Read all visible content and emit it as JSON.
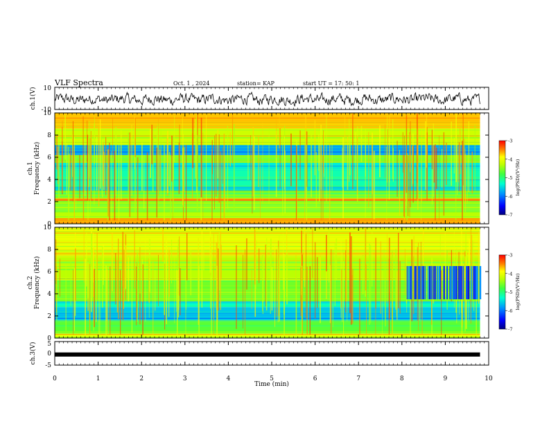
{
  "header": {
    "title": "VLF Spectra",
    "date": "Oct. 1 , 2024",
    "station": "station= KAP",
    "start": "start  UT =  17: 50: 1"
  },
  "colors": {
    "spectrogram_scale": [
      "#000080",
      "#0000ff",
      "#0080ff",
      "#00e0ff",
      "#00ff80",
      "#80ff00",
      "#ffff00",
      "#ff8000",
      "#ff0000"
    ]
  },
  "chart_data": [
    {
      "type": "line",
      "name": "ch1-waveform",
      "ylabel": "ch.1(V)",
      "ylim": [
        -10,
        10
      ],
      "yticks": [
        "10",
        "-10"
      ],
      "x_range": [
        0,
        9.8
      ],
      "description_values": {
        "mean": -1.0,
        "amplitude": 3.5
      }
    },
    {
      "type": "heatmap",
      "name": "ch1-spectrogram",
      "ylabel_line1": "ch.1",
      "ylabel_line2": "Frequency (kHz)",
      "ylim": [
        0,
        10
      ],
      "yticks": [
        "0",
        "2",
        "4",
        "6",
        "8",
        "10"
      ],
      "x_range": [
        0,
        9.8
      ],
      "colorbar": {
        "label": "log(PSD)(V²/Hz)",
        "ticks": [
          "-3",
          "-4",
          "-5",
          "-6",
          "-7"
        ],
        "range": [
          -7,
          -3
        ]
      },
      "bands": [
        {
          "from": 0.0,
          "to": 0.5,
          "level": -3.6
        },
        {
          "from": 0.5,
          "to": 1.0,
          "level": -4.3
        },
        {
          "from": 1.0,
          "to": 2.1,
          "level": -4.4
        },
        {
          "from": 2.1,
          "to": 2.3,
          "level": -3.5
        },
        {
          "from": 2.3,
          "to": 3.0,
          "level": -4.5
        },
        {
          "from": 3.0,
          "to": 3.4,
          "level": -5.5
        },
        {
          "from": 3.4,
          "to": 4.9,
          "level": -5.2
        },
        {
          "from": 4.9,
          "to": 5.5,
          "level": -5.4
        },
        {
          "from": 5.5,
          "to": 6.2,
          "level": -4.5
        },
        {
          "from": 6.2,
          "to": 7.1,
          "level": -5.8
        },
        {
          "from": 7.1,
          "to": 8.6,
          "level": -4.2
        },
        {
          "from": 8.6,
          "to": 10.0,
          "level": -3.7
        }
      ]
    },
    {
      "type": "heatmap",
      "name": "ch2-spectrogram",
      "ylabel_line1": "ch.2",
      "ylabel_line2": "Frequency (kHz)",
      "ylim": [
        0,
        10
      ],
      "yticks": [
        "0",
        "2",
        "4",
        "6",
        "8",
        "10"
      ],
      "x_range": [
        0,
        9.8
      ],
      "colorbar": {
        "label": "log(PSD)(V²/Hz)",
        "ticks": [
          "-3",
          "-4",
          "-5",
          "-6",
          "-7"
        ],
        "range": [
          -7,
          -3
        ]
      },
      "bands": [
        {
          "from": 0.0,
          "to": 0.4,
          "level": -4.0
        },
        {
          "from": 0.4,
          "to": 1.6,
          "level": -4.7
        },
        {
          "from": 1.6,
          "to": 2.8,
          "level": -5.6
        },
        {
          "from": 2.8,
          "to": 3.3,
          "level": -5.3
        },
        {
          "from": 3.3,
          "to": 5.2,
          "level": -4.6
        },
        {
          "from": 5.2,
          "to": 7.4,
          "level": -4.3
        },
        {
          "from": 7.4,
          "to": 10.0,
          "level": -4.0
        }
      ],
      "late_quiet_region": {
        "t_from": 8.1,
        "f_from": 3.5,
        "f_to": 6.5,
        "level": -6.2
      }
    },
    {
      "type": "line",
      "name": "ch3-waveform",
      "ylabel": "ch.3(V)",
      "ylim": [
        -5,
        5
      ],
      "yticks": [
        "5",
        "0",
        "-5"
      ],
      "x_range": [
        0,
        9.8
      ],
      "value": -0.5
    }
  ],
  "xaxis": {
    "label": "Time  (min)",
    "ticks": [
      "0",
      "1",
      "2",
      "3",
      "4",
      "5",
      "6",
      "7",
      "8",
      "9",
      "10"
    ],
    "range": [
      0,
      10
    ]
  }
}
